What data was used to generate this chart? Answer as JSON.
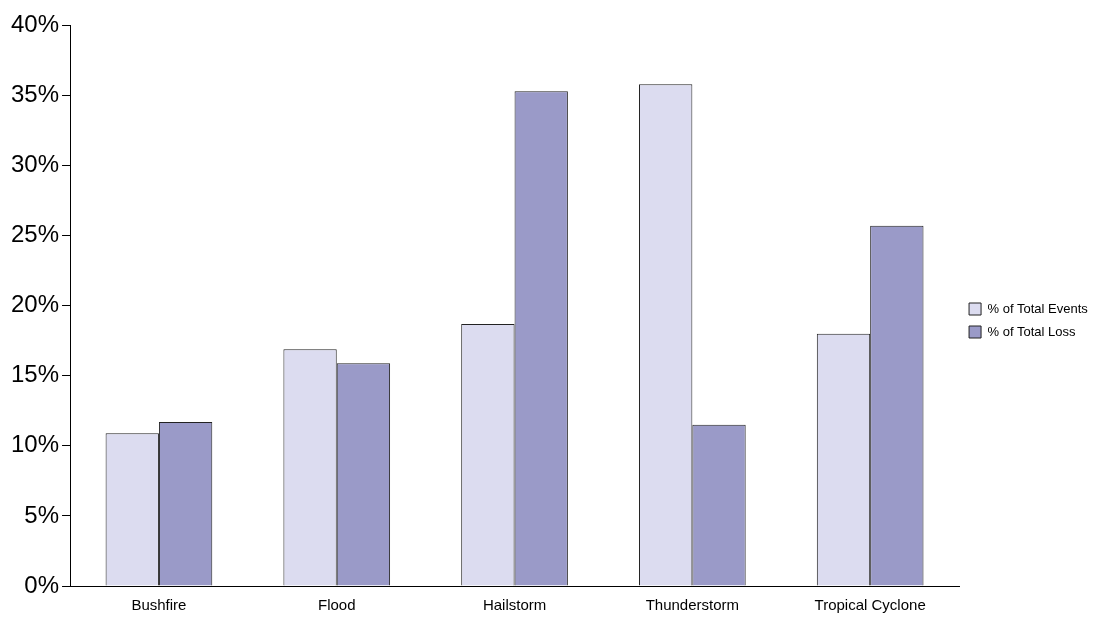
{
  "chart_data": {
    "type": "bar",
    "categories": [
      "Bushfire",
      "Flood",
      "Hailstorm",
      "Thunderstorm",
      "Tropical Cyclone"
    ],
    "series": [
      {
        "name": "% of Total Events",
        "color": "#dcdcf0",
        "values": [
          10.9,
          16.9,
          18.7,
          35.8,
          18.0
        ]
      },
      {
        "name": "% of Total Loss",
        "color": "#9a9ac8",
        "values": [
          11.7,
          15.9,
          35.3,
          11.5,
          25.7
        ]
      }
    ],
    "ylim": [
      0,
      40
    ],
    "yticks": [
      {
        "value": 0,
        "label": "0%"
      },
      {
        "value": 5,
        "label": "5%"
      },
      {
        "value": 10,
        "label": "10%"
      },
      {
        "value": 15,
        "label": "15%"
      },
      {
        "value": 20,
        "label": "20%"
      },
      {
        "value": 25,
        "label": "25%"
      },
      {
        "value": 30,
        "label": "30%"
      },
      {
        "value": 35,
        "label": "35%"
      },
      {
        "value": 40,
        "label": "40%"
      }
    ],
    "grid": false,
    "legend": "right"
  }
}
